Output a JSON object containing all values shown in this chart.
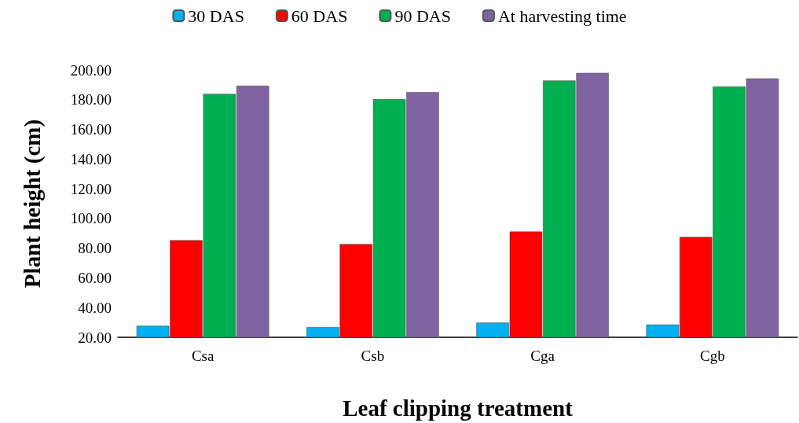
{
  "chart_data": {
    "type": "bar",
    "xlabel": "Leaf clipping treatment",
    "ylabel": "Plant height (cm)",
    "categories": [
      "Csa",
      "Csb",
      "Cga",
      "Cgb"
    ],
    "series": [
      {
        "name": "30 DAS",
        "color": "#00b0f0",
        "values": [
          27.8,
          26.9,
          29.9,
          28.6
        ]
      },
      {
        "name": "60 DAS",
        "color": "#ff0000",
        "values": [
          85.4,
          82.8,
          91.2,
          87.6
        ]
      },
      {
        "name": "90 DAS",
        "color": "#00b050",
        "values": [
          183.9,
          180.4,
          192.9,
          188.9
        ]
      },
      {
        "name": "At harvesting time",
        "color": "#8064a2",
        "values": [
          189.4,
          185.1,
          198.0,
          194.3
        ]
      }
    ],
    "ylim": [
      20,
      200
    ],
    "yticks": [
      {
        "value": 20,
        "label": "20.00"
      },
      {
        "value": 40,
        "label": "40.00"
      },
      {
        "value": 60,
        "label": "60.00"
      },
      {
        "value": 80,
        "label": "80.00"
      },
      {
        "value": 100,
        "label": "100.00"
      },
      {
        "value": 120,
        "label": "120.00"
      },
      {
        "value": 140,
        "label": "140.00"
      },
      {
        "value": 160,
        "label": "160.00"
      },
      {
        "value": 180,
        "label": "180.00"
      },
      {
        "value": 200,
        "label": "200.00"
      }
    ],
    "grid": false,
    "legend": "top"
  }
}
